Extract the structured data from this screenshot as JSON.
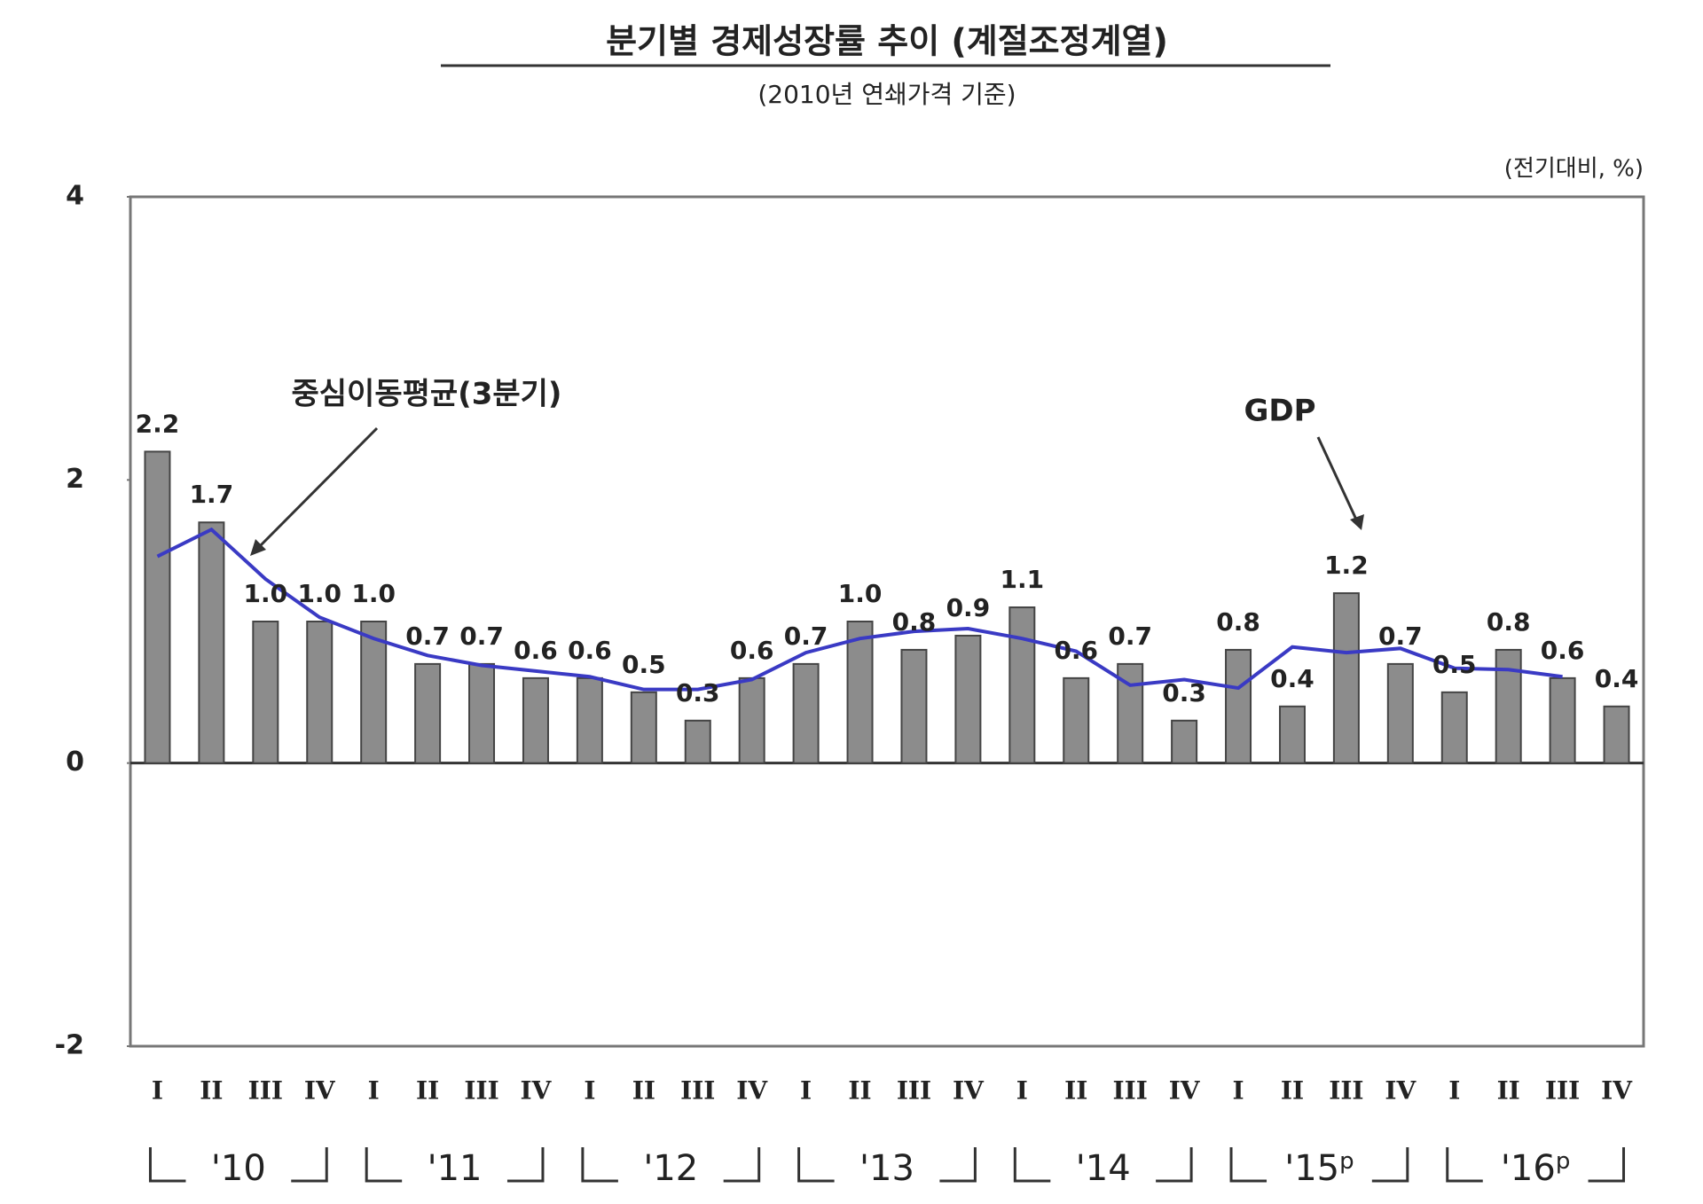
{
  "chart_data": {
    "type": "bar",
    "title": "분기별 경제성장률 추이 (계절조정계열)",
    "subtitle": "(2010년 연쇄가격 기준)",
    "unit_label": "(전기대비, %)",
    "categories": [
      "I",
      "II",
      "III",
      "IV",
      "I",
      "II",
      "III",
      "IV",
      "I",
      "II",
      "III",
      "IV",
      "I",
      "II",
      "III",
      "IV",
      "I",
      "II",
      "III",
      "IV",
      "I",
      "II",
      "III",
      "IV",
      "I",
      "II",
      "III",
      "IV"
    ],
    "year_groups": [
      {
        "label": "'10"
      },
      {
        "label": "'11"
      },
      {
        "label": "'12"
      },
      {
        "label": "'13"
      },
      {
        "label": "'14"
      },
      {
        "label": "'15",
        "note": "p"
      },
      {
        "label": "'16",
        "note": "p"
      }
    ],
    "series": [
      {
        "name": "GDP",
        "type": "bar",
        "color": "#8c8c8c",
        "values": [
          2.2,
          1.7,
          1.0,
          1.0,
          1.0,
          0.7,
          0.7,
          0.6,
          0.6,
          0.5,
          0.3,
          0.6,
          0.7,
          1.0,
          0.8,
          0.9,
          1.1,
          0.6,
          0.7,
          0.3,
          0.8,
          0.4,
          1.2,
          0.7,
          0.5,
          0.8,
          0.6,
          0.4
        ],
        "value_labels": [
          "2.2",
          "1.7",
          "1.0",
          "1.0",
          "1.0",
          "0.7",
          "0.7",
          "0.6",
          "0.6",
          "0.5",
          "0.3",
          "0.6",
          "0.7",
          "1.0",
          "0.8",
          "0.9",
          "1.1",
          "0.6",
          "0.7",
          "0.3",
          "0.8",
          "0.4",
          "1.2",
          "0.7",
          "0.5",
          "0.8",
          "0.6",
          "0.4"
        ]
      },
      {
        "name": "중심이동평균(3분기)",
        "type": "line",
        "color": "#3a3ac4",
        "values": [
          1.46,
          1.65,
          1.3,
          1.03,
          0.88,
          0.76,
          0.69,
          0.65,
          0.61,
          0.52,
          0.52,
          0.59,
          0.78,
          0.88,
          0.93,
          0.95,
          0.88,
          0.79,
          0.55,
          0.59,
          0.53,
          0.82,
          0.78,
          0.81,
          0.67,
          0.66,
          0.61,
          null
        ]
      }
    ],
    "ylim": [
      -2,
      4
    ],
    "yticks": [
      4,
      2,
      0,
      -2
    ]
  }
}
